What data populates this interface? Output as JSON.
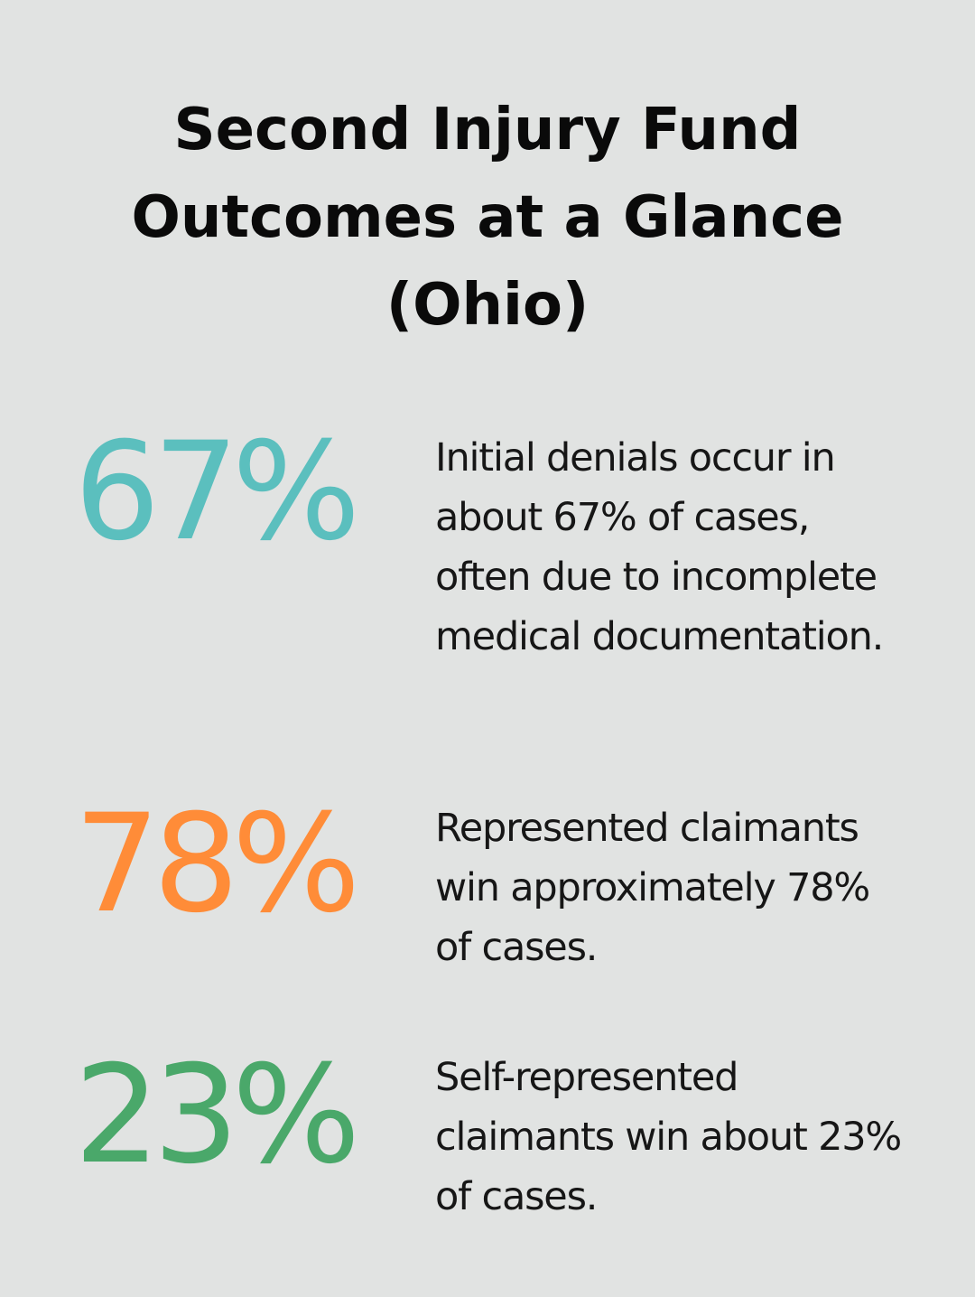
{
  "title": "Second Injury Fund Outcomes at a Glance (Ohio)",
  "stats": [
    {
      "value": "67%",
      "color": "#5bbfbe",
      "description": "Initial denials occur in about 67% of cases, often due to incomplete medical documentation."
    },
    {
      "value": "78%",
      "color": "#ff8c38",
      "description": "Represented claimants win approximately 78% of cases."
    },
    {
      "value": "23%",
      "color": "#4aa86a",
      "description": "Self-represented claimants win about 23% of cases."
    }
  ]
}
